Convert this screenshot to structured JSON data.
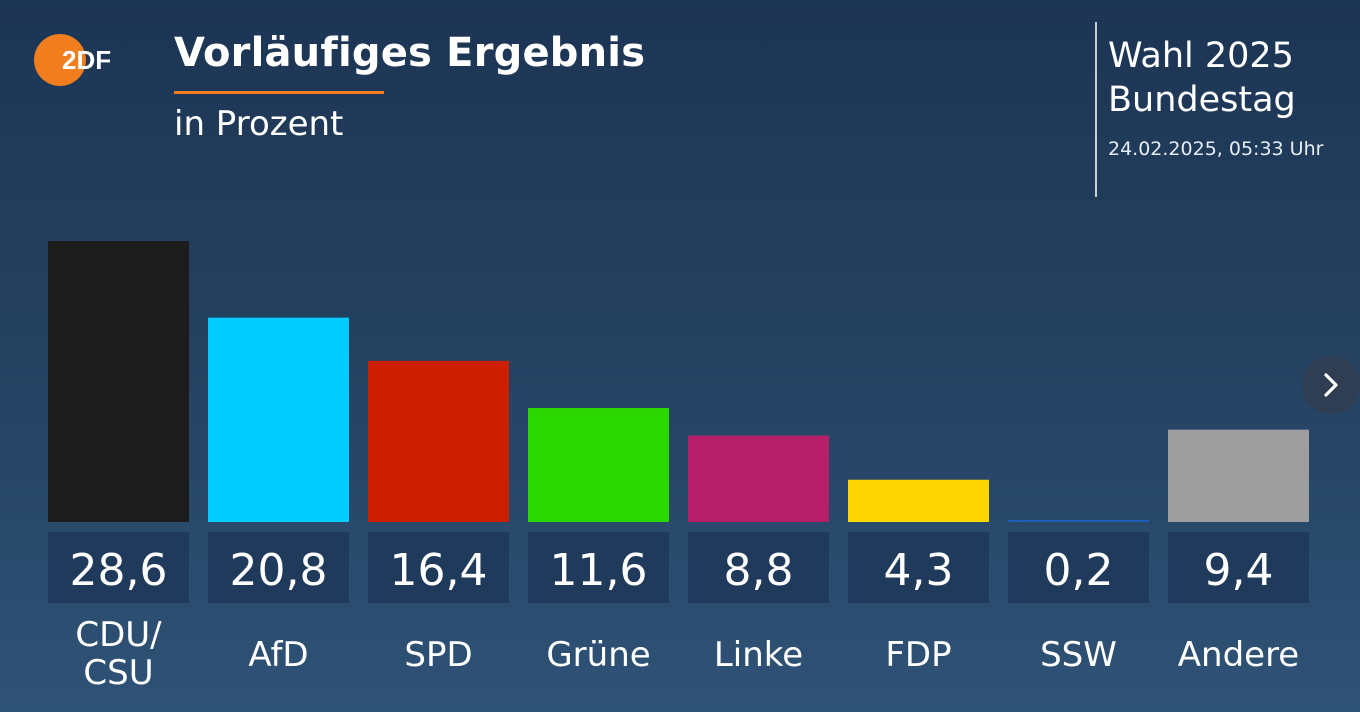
{
  "header": {
    "logo_text": "2DF",
    "title": "Vorläufiges Ergebnis",
    "subtitle": "in Prozent",
    "election_line1": "Wahl 2025",
    "election_line2": "Bundestag",
    "timestamp": "24.02.2025, 05:33 Uhr"
  },
  "colors": {
    "accent": "#f07d1e",
    "value_box": "#1f3a5b"
  },
  "icons": {
    "next": "chevron-right-icon"
  },
  "chart_data": {
    "type": "bar",
    "title": "Vorläufiges Ergebnis",
    "subtitle": "in Prozent",
    "categories": [
      "CDU/\nCSU",
      "AfD",
      "SPD",
      "Grüne",
      "Linke",
      "FDP",
      "SSW",
      "Andere"
    ],
    "values": [
      28.6,
      20.8,
      16.4,
      11.6,
      8.8,
      4.3,
      0.2,
      9.4
    ],
    "value_labels": [
      "28,6",
      "20,8",
      "16,4",
      "11,6",
      "8,8",
      "4,3",
      "0,2",
      "9,4"
    ],
    "colors": [
      "#1c1c1c",
      "#00cdfd",
      "#cc1f00",
      "#2bd900",
      "#b41f67",
      "#ffd700",
      "#1e5fb8",
      "#9e9e9e"
    ],
    "xlabel": "",
    "ylabel": "",
    "ylim": [
      0,
      28.6
    ],
    "grid": false,
    "legend": "none"
  }
}
